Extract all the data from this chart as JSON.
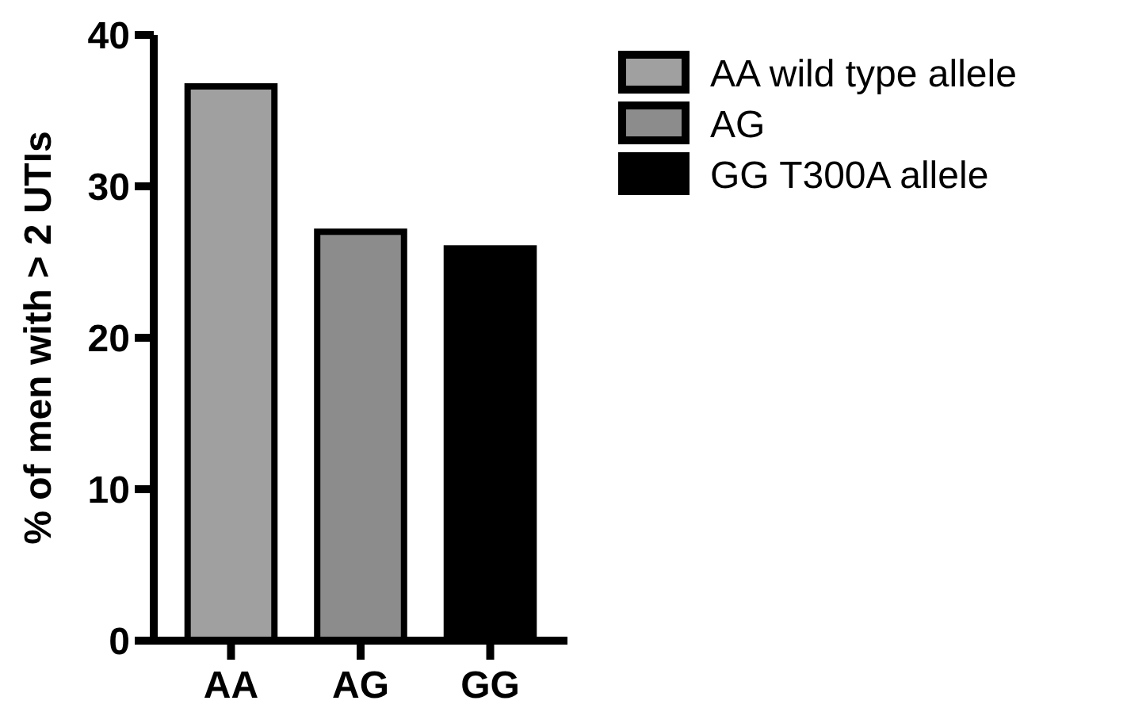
{
  "chart_data": {
    "type": "bar",
    "ylabel": "% of men with > 2 UTIs",
    "categories": [
      "AA",
      "AG",
      "GG"
    ],
    "series": [
      {
        "name": "AA wild type allele",
        "color": "#a0a0a0",
        "values": [
          36.6,
          null,
          null
        ]
      },
      {
        "name": "AG",
        "color": "#8c8c8c",
        "values": [
          null,
          27.0,
          null
        ]
      },
      {
        "name": "GG T300A allele",
        "color": "#000000",
        "values": [
          null,
          null,
          25.9
        ]
      }
    ],
    "ylim": [
      0,
      40
    ],
    "yticks": [
      0,
      10,
      20,
      30,
      40
    ],
    "grid": false,
    "legend": "right"
  }
}
